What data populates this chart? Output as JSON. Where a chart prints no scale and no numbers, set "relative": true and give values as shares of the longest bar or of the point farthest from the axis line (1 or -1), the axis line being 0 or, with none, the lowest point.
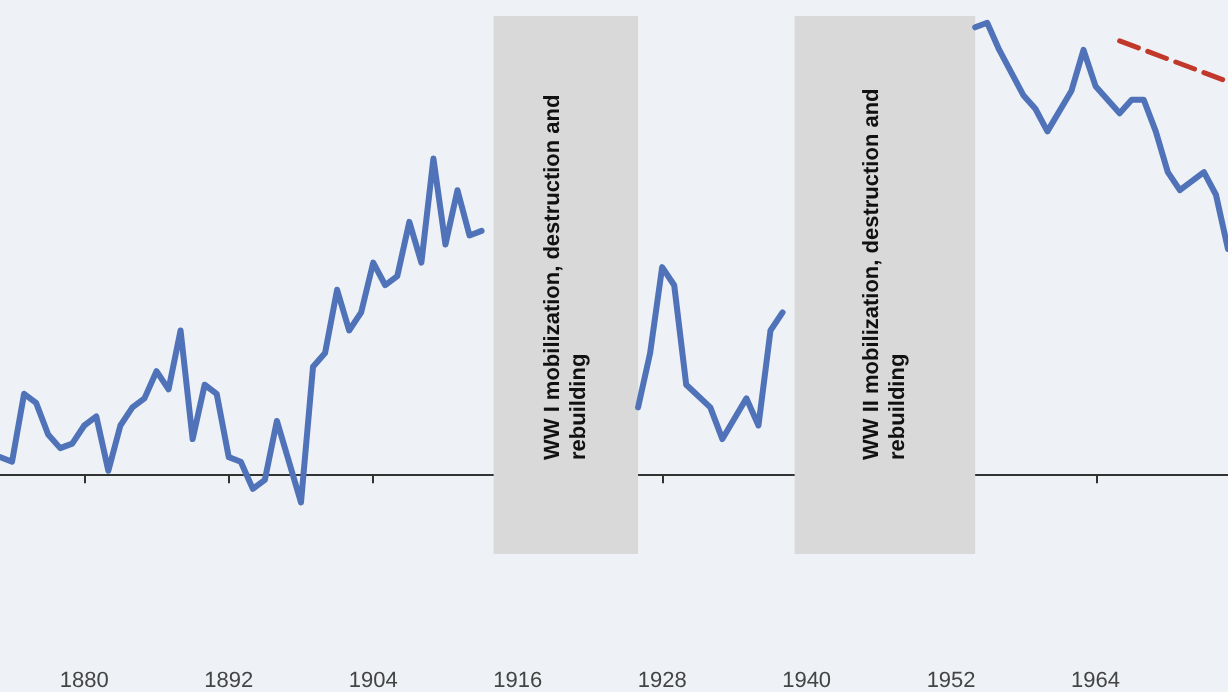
{
  "chart_data": {
    "type": "line",
    "relative": true,
    "grid": false,
    "marker": "none",
    "xlim": [
      1873,
      1975
    ],
    "xticks": [
      1880,
      1892,
      1904,
      1916,
      1928,
      1940,
      1952,
      1964
    ],
    "series": [
      {
        "color": "#4f72b8",
        "line_style": "solid",
        "x": [
          1873,
          1874,
          1875,
          1876,
          1877,
          1878,
          1879,
          1880,
          1881,
          1882,
          1883,
          1884,
          1885,
          1886,
          1887,
          1888,
          1889,
          1890,
          1891,
          1892,
          1893,
          1894,
          1895,
          1896,
          1898,
          1899,
          1900,
          1901,
          1902,
          1903,
          1904,
          1905,
          1906,
          1907,
          1908,
          1909,
          1910,
          1911,
          1912,
          1913,
          1920,
          1926,
          1927,
          1928,
          1929,
          1930,
          1932,
          1933,
          1935,
          1936,
          1937,
          1938,
          1946,
          1954,
          1955,
          1956,
          1958,
          1959,
          1960,
          1962,
          1963,
          1964,
          1966,
          1967,
          1968,
          1969,
          1970,
          1971,
          1973,
          1974,
          1975
        ],
        "values": [
          0.04,
          0.03,
          0.18,
          0.16,
          0.09,
          0.06,
          0.07,
          0.11,
          0.13,
          0.01,
          0.11,
          0.15,
          0.17,
          0.23,
          0.19,
          0.32,
          0.08,
          0.2,
          0.18,
          0.04,
          0.03,
          -0.03,
          -0.01,
          0.12,
          -0.06,
          0.24,
          0.27,
          0.41,
          0.32,
          0.36,
          0.47,
          0.42,
          0.44,
          0.56,
          0.47,
          0.7,
          0.51,
          0.63,
          0.53,
          0.54,
          null,
          0.15,
          0.27,
          0.46,
          0.42,
          0.2,
          0.15,
          0.08,
          0.17,
          0.11,
          0.32,
          0.36,
          null,
          0.99,
          1,
          0.94,
          0.84,
          0.81,
          0.76,
          0.85,
          0.94,
          0.86,
          0.8,
          0.83,
          0.83,
          0.76,
          0.67,
          0.63,
          0.67,
          0.62,
          0.5
        ]
      },
      {
        "color": "#c0392b",
        "line_style": "dashed",
        "x": [
          1966,
          1975
        ],
        "values": [
          0.96,
          0.87
        ]
      }
    ],
    "bands": [
      {
        "axis": "x",
        "from": 1914,
        "to": 1926,
        "label": "WW I mobilization, destruction and rebuilding",
        "color": "#d9d9d9"
      },
      {
        "axis": "x",
        "from": 1939,
        "to": 1954,
        "label": "WW II mobilization, destruction and rebuilding",
        "color": "#d9d9d9"
      }
    ]
  }
}
